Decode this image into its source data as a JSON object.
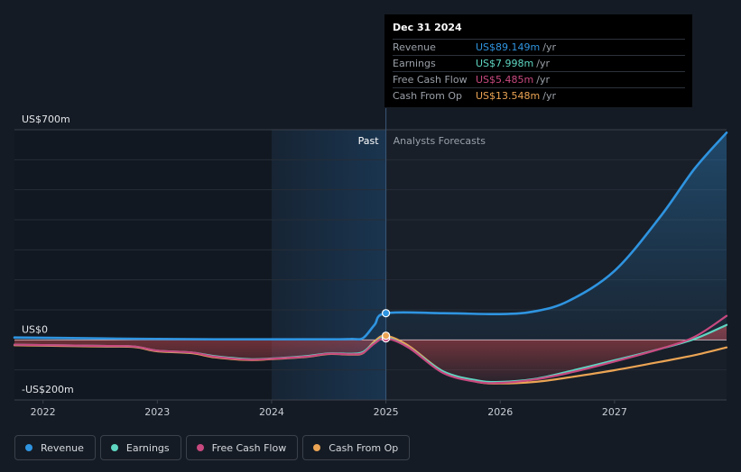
{
  "colors": {
    "background": "#151b24",
    "revenue": "#2f94e0",
    "earnings": "#5fd6c2",
    "free_cash_flow": "#c8497f",
    "cash_from_op": "#eba454",
    "past_highlight": "#1a3652"
  },
  "tooltip": {
    "date": "Dec 31 2024",
    "rows": [
      {
        "label": "Revenue",
        "value": "US$89.149m",
        "unit": "/yr",
        "color": "#2f94e0"
      },
      {
        "label": "Earnings",
        "value": "US$7.998m",
        "unit": "/yr",
        "color": "#5fd6c2"
      },
      {
        "label": "Free Cash Flow",
        "value": "US$5.485m",
        "unit": "/yr",
        "color": "#c8497f"
      },
      {
        "label": "Cash From Op",
        "value": "US$13.548m",
        "unit": "/yr",
        "color": "#eba454"
      }
    ]
  },
  "legend": [
    {
      "label": "Revenue",
      "color": "#2f94e0"
    },
    {
      "label": "Earnings",
      "color": "#5fd6c2"
    },
    {
      "label": "Free Cash Flow",
      "color": "#c8497f"
    },
    {
      "label": "Cash From Op",
      "color": "#eba454"
    }
  ],
  "chart_data": {
    "type": "line",
    "y_tick_labels": [
      {
        "value": 700,
        "label": "US$700m"
      },
      {
        "value": 0,
        "label": "US$0"
      },
      {
        "value": -200,
        "label": "-US$200m"
      }
    ],
    "x_tick_labels": [
      "2022",
      "2023",
      "2024",
      "2025",
      "2026",
      "2027"
    ],
    "ylim": [
      -200,
      700
    ],
    "xlim": [
      2021.75,
      2027.98
    ],
    "past_label": "Past",
    "forecast_label": "Analysts Forecasts",
    "divider_x": 2025.0,
    "highlight_start": 2024.0,
    "grid": true,
    "series": [
      {
        "name": "Revenue",
        "color": "#2f94e0",
        "points": [
          [
            2021.75,
            8
          ],
          [
            2022.5,
            5
          ],
          [
            2023.0,
            3
          ],
          [
            2023.5,
            2
          ],
          [
            2024.0,
            2
          ],
          [
            2024.5,
            2
          ],
          [
            2024.7,
            3
          ],
          [
            2024.8,
            6
          ],
          [
            2024.9,
            50
          ],
          [
            2025.0,
            89
          ],
          [
            2025.5,
            89
          ],
          [
            2026.0,
            86
          ],
          [
            2026.3,
            95
          ],
          [
            2026.6,
            130
          ],
          [
            2027.0,
            230
          ],
          [
            2027.4,
            410
          ],
          [
            2027.7,
            570
          ],
          [
            2027.98,
            690
          ]
        ]
      },
      {
        "name": "Earnings",
        "color": "#5fd6c2",
        "points": [
          [
            2021.75,
            -16
          ],
          [
            2022.5,
            -20
          ],
          [
            2022.8,
            -22
          ],
          [
            2023.0,
            -36
          ],
          [
            2023.3,
            -42
          ],
          [
            2023.5,
            -54
          ],
          [
            2023.8,
            -64
          ],
          [
            2024.0,
            -62
          ],
          [
            2024.3,
            -54
          ],
          [
            2024.5,
            -45
          ],
          [
            2024.7,
            -46
          ],
          [
            2024.8,
            -40
          ],
          [
            2024.9,
            -10
          ],
          [
            2025.0,
            8
          ],
          [
            2025.2,
            -25
          ],
          [
            2025.5,
            -105
          ],
          [
            2025.8,
            -135
          ],
          [
            2026.0,
            -140
          ],
          [
            2026.3,
            -130
          ],
          [
            2026.6,
            -105
          ],
          [
            2027.0,
            -68
          ],
          [
            2027.4,
            -30
          ],
          [
            2027.7,
            3
          ],
          [
            2027.98,
            50
          ]
        ]
      },
      {
        "name": "Free Cash Flow",
        "color": "#c8497f",
        "points": [
          [
            2021.75,
            -16
          ],
          [
            2022.5,
            -20
          ],
          [
            2022.8,
            -22
          ],
          [
            2023.0,
            -36
          ],
          [
            2023.3,
            -42
          ],
          [
            2023.5,
            -56
          ],
          [
            2023.8,
            -66
          ],
          [
            2024.0,
            -63
          ],
          [
            2024.3,
            -56
          ],
          [
            2024.5,
            -46
          ],
          [
            2024.7,
            -48
          ],
          [
            2024.8,
            -43
          ],
          [
            2024.9,
            -12
          ],
          [
            2025.0,
            5
          ],
          [
            2025.2,
            -26
          ],
          [
            2025.5,
            -110
          ],
          [
            2025.8,
            -140
          ],
          [
            2026.0,
            -143
          ],
          [
            2026.3,
            -132
          ],
          [
            2026.6,
            -110
          ],
          [
            2027.0,
            -72
          ],
          [
            2027.4,
            -30
          ],
          [
            2027.7,
            10
          ],
          [
            2027.98,
            80
          ]
        ]
      },
      {
        "name": "Cash From Op",
        "color": "#eba454",
        "points": [
          [
            2021.75,
            -18
          ],
          [
            2022.5,
            -22
          ],
          [
            2022.8,
            -24
          ],
          [
            2023.0,
            -38
          ],
          [
            2023.3,
            -44
          ],
          [
            2023.5,
            -58
          ],
          [
            2023.8,
            -67
          ],
          [
            2024.0,
            -64
          ],
          [
            2024.3,
            -57
          ],
          [
            2024.5,
            -47
          ],
          [
            2024.7,
            -49
          ],
          [
            2024.8,
            -44
          ],
          [
            2024.9,
            -5
          ],
          [
            2025.0,
            14
          ],
          [
            2025.2,
            -20
          ],
          [
            2025.5,
            -105
          ],
          [
            2025.8,
            -140
          ],
          [
            2026.0,
            -145
          ],
          [
            2026.3,
            -140
          ],
          [
            2026.6,
            -125
          ],
          [
            2027.0,
            -101
          ],
          [
            2027.4,
            -73
          ],
          [
            2027.7,
            -51
          ],
          [
            2027.98,
            -25
          ]
        ]
      }
    ],
    "markers_at_x": 2025.0
  }
}
